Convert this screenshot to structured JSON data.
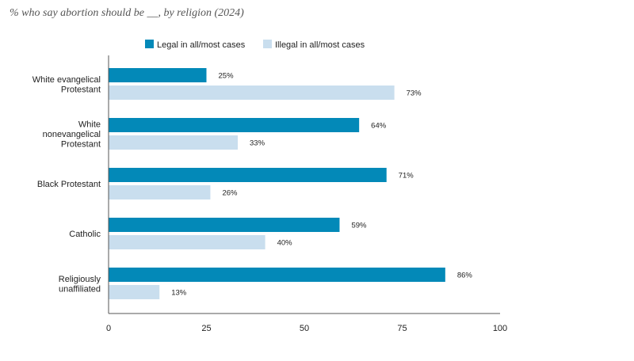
{
  "chart_data": {
    "type": "bar",
    "orientation": "horizontal",
    "title": "% who say abortion should be __, by religion (2024)",
    "categories": [
      [
        "White evangelical",
        "Protestant"
      ],
      [
        "White",
        "nonevangelical",
        "Protestant"
      ],
      [
        "Black Protestant"
      ],
      [
        "Catholic"
      ],
      [
        "Religiously",
        "unaffiliated"
      ]
    ],
    "series": [
      {
        "name": "Legal in all/most cases",
        "color": "#0389b8",
        "values": [
          25,
          64,
          71,
          59,
          86
        ]
      },
      {
        "name": "Illegal in all/most cases",
        "color": "#c9deee",
        "values": [
          73,
          33,
          26,
          40,
          13
        ]
      }
    ],
    "value_suffix": "%",
    "xlim": [
      0,
      100
    ],
    "xticks": [
      0,
      25,
      50,
      75,
      100
    ],
    "grid": false,
    "legend_position": "top"
  }
}
